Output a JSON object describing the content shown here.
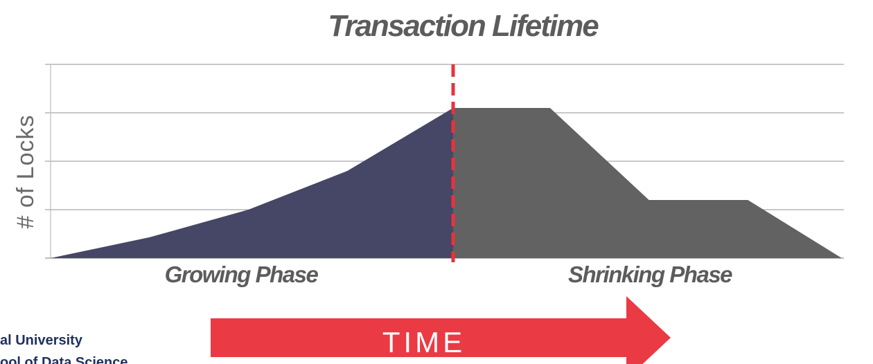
{
  "chart_data": {
    "type": "area",
    "title": "Transaction Lifetime",
    "ylabel": "# of Locks",
    "xlim": [
      0,
      8
    ],
    "ylim": [
      0,
      4
    ],
    "grid": true,
    "phase_labels": [
      "Growing Phase",
      "Shrinking Phase"
    ],
    "time_arrow_label": "TIME",
    "divider_x": 4.07,
    "series": [
      {
        "points": [
          [
            0,
            0
          ],
          [
            1,
            0.43
          ],
          [
            2,
            1.0
          ],
          [
            3,
            1.8
          ],
          [
            4.07,
            3.1
          ]
        ],
        "color": "#464666"
      },
      {
        "points": [
          [
            4.07,
            3.1
          ],
          [
            5.05,
            3.1
          ],
          [
            6.05,
            1.2
          ],
          [
            7.05,
            1.2
          ],
          [
            8,
            0
          ]
        ],
        "color": "#626262"
      }
    ],
    "colors": {
      "divider": "#e8333b",
      "arrow": "#ea3a44",
      "grid": "#a6a6a6",
      "axis": "#bfbfbf"
    }
  },
  "footer": {
    "line1": "al University",
    "line2": "ool of Data Science"
  }
}
